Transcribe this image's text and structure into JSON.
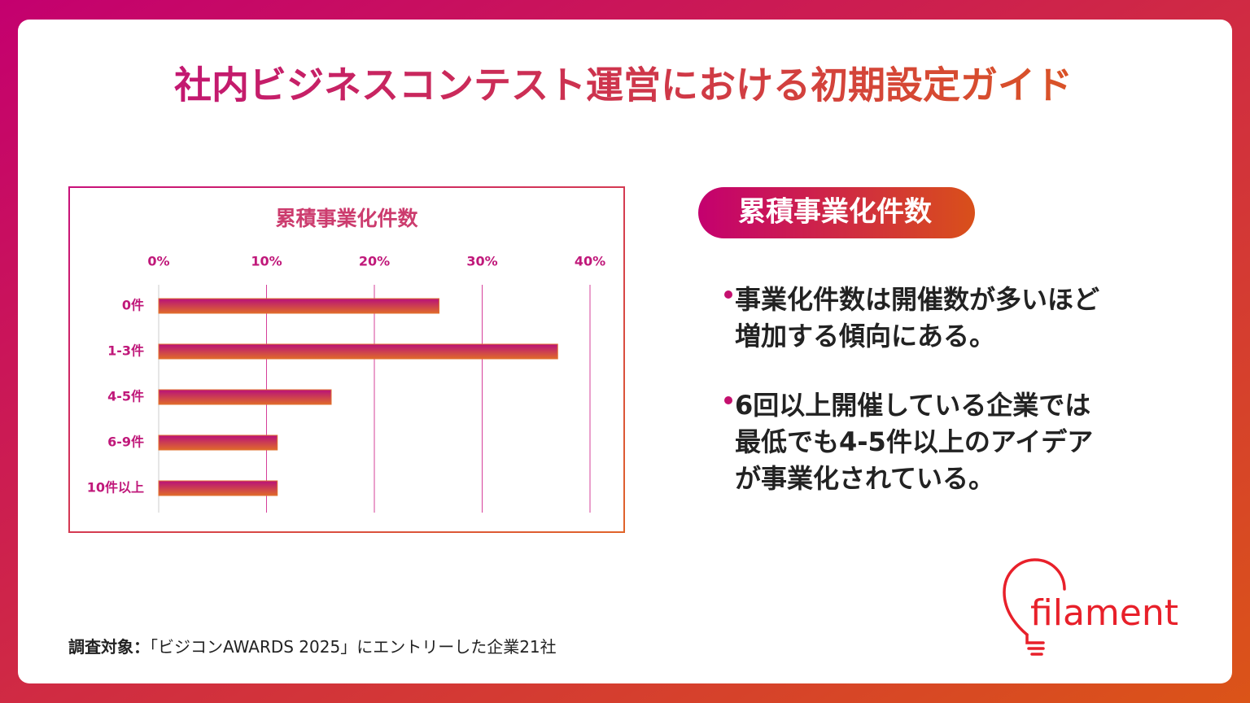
{
  "title": "社内ビジネスコンテスト運営における初期設定ガイド",
  "chart_data": {
    "type": "bar",
    "orientation": "horizontal",
    "title": "累積事業化件数",
    "categories": [
      "0件",
      "1-3件",
      "4-5件",
      "6-9件",
      "10件以上"
    ],
    "values": [
      26,
      37,
      16,
      11,
      11
    ],
    "xlim": [
      0,
      40
    ],
    "xticks": [
      {
        "value": 0,
        "label": "0%"
      },
      {
        "value": 10,
        "label": "10%"
      },
      {
        "value": 20,
        "label": "20%"
      },
      {
        "value": 30,
        "label": "30%"
      },
      {
        "value": 40,
        "label": "40%"
      }
    ],
    "grid": true
  },
  "side_heading": "累積事業化件数",
  "bullets": [
    {
      "lines": [
        "事業化件数は開催数が多いほど",
        "増加する傾向にある。"
      ]
    },
    {
      "lines": [
        "6回以上開催している企業では",
        "最低でも4-5件以上のアイデア",
        "が事業化されている。"
      ]
    }
  ],
  "footer": {
    "label": "調査対象：",
    "text": "「ビジコンAWARDS 2025」にエントリーした企業21社"
  },
  "logo": "filament"
}
